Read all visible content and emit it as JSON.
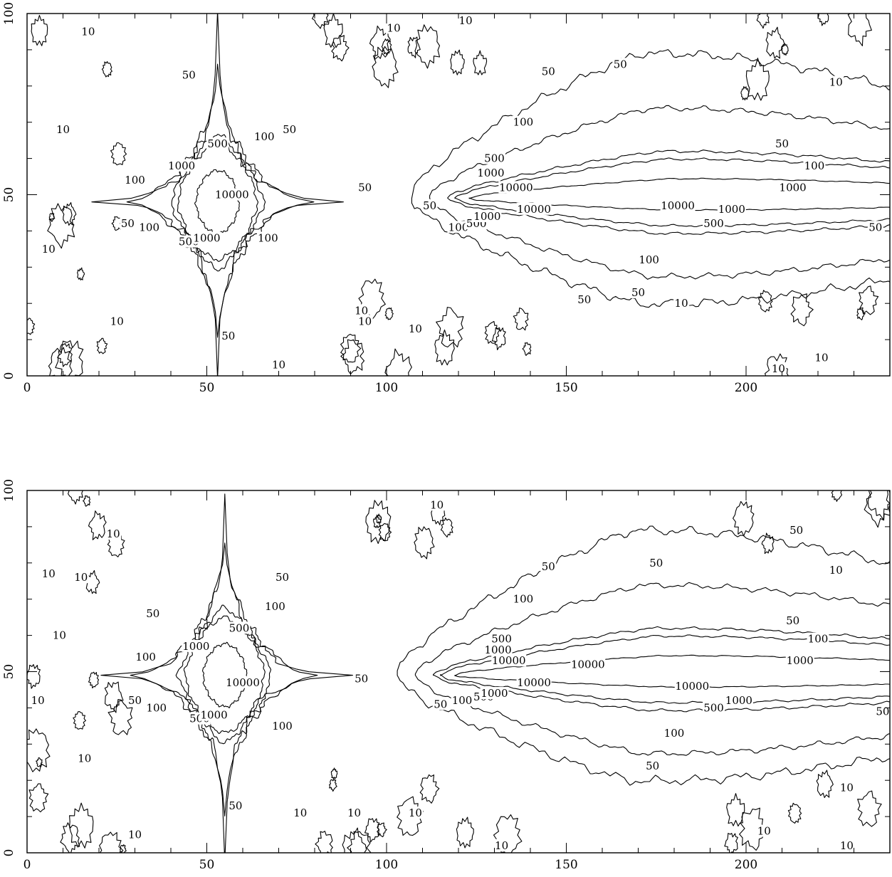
{
  "chart_data": [
    {
      "type": "contour",
      "title": "",
      "xlabel": "",
      "ylabel": "",
      "xlim": [
        0,
        240
      ],
      "ylim": [
        0,
        100
      ],
      "x_ticks": [
        0,
        50,
        100,
        150,
        200
      ],
      "y_ticks": [
        0,
        50,
        100
      ],
      "grid": false,
      "contour_levels": [
        10,
        50,
        100,
        500,
        1000,
        10000
      ],
      "sources": [
        {
          "name": "point",
          "center": [
            53,
            48
          ]
        },
        {
          "name": "tail",
          "head": [
            110,
            49
          ],
          "extends_to": 240
        }
      ],
      "contour_labels": [
        {
          "text": "10",
          "x": 17,
          "y": 95
        },
        {
          "text": "10",
          "x": 102,
          "y": 96
        },
        {
          "text": "10",
          "x": 122,
          "y": 98
        },
        {
          "text": "10",
          "x": 10,
          "y": 68
        },
        {
          "text": "10",
          "x": 6,
          "y": 35
        },
        {
          "text": "10",
          "x": 25,
          "y": 15
        },
        {
          "text": "10",
          "x": 225,
          "y": 81
        },
        {
          "text": "10",
          "x": 93,
          "y": 18
        },
        {
          "text": "10",
          "x": 94,
          "y": 15
        },
        {
          "text": "10",
          "x": 108,
          "y": 13
        },
        {
          "text": "10",
          "x": 70,
          "y": 3
        },
        {
          "text": "10",
          "x": 209,
          "y": 2
        },
        {
          "text": "10",
          "x": 221,
          "y": 5
        },
        {
          "text": "10",
          "x": 182,
          "y": 20
        },
        {
          "text": "50",
          "x": 45,
          "y": 83
        },
        {
          "text": "50",
          "x": 73,
          "y": 68
        },
        {
          "text": "50",
          "x": 28,
          "y": 42
        },
        {
          "text": "50",
          "x": 56,
          "y": 11
        },
        {
          "text": "50",
          "x": 94,
          "y": 52
        },
        {
          "text": "50",
          "x": 145,
          "y": 84
        },
        {
          "text": "50",
          "x": 165,
          "y": 86
        },
        {
          "text": "50",
          "x": 112,
          "y": 47
        },
        {
          "text": "50",
          "x": 210,
          "y": 64
        },
        {
          "text": "50",
          "x": 236,
          "y": 41
        },
        {
          "text": "50",
          "x": 155,
          "y": 21
        },
        {
          "text": "50",
          "x": 170,
          "y": 23
        },
        {
          "text": "100",
          "x": 30,
          "y": 54
        },
        {
          "text": "100",
          "x": 66,
          "y": 66
        },
        {
          "text": "100",
          "x": 34,
          "y": 41
        },
        {
          "text": "100",
          "x": 67,
          "y": 38
        },
        {
          "text": "100",
          "x": 138,
          "y": 70
        },
        {
          "text": "100",
          "x": 219,
          "y": 58
        },
        {
          "text": "100",
          "x": 120,
          "y": 41
        },
        {
          "text": "100",
          "x": 173,
          "y": 32
        },
        {
          "text": "500",
          "x": 53,
          "y": 64
        },
        {
          "text": "500",
          "x": 45,
          "y": 37
        },
        {
          "text": "500",
          "x": 130,
          "y": 60
        },
        {
          "text": "500",
          "x": 125,
          "y": 42
        },
        {
          "text": "500",
          "x": 191,
          "y": 42
        },
        {
          "text": "1000",
          "x": 43,
          "y": 58
        },
        {
          "text": "1000",
          "x": 50,
          "y": 38
        },
        {
          "text": "1000",
          "x": 129,
          "y": 56
        },
        {
          "text": "1000",
          "x": 128,
          "y": 44
        },
        {
          "text": "1000",
          "x": 196,
          "y": 46
        },
        {
          "text": "1000",
          "x": 213,
          "y": 52
        },
        {
          "text": "10000",
          "x": 57,
          "y": 50
        },
        {
          "text": "10000",
          "x": 136,
          "y": 52
        },
        {
          "text": "10000",
          "x": 141,
          "y": 46
        },
        {
          "text": "10000",
          "x": 181,
          "y": 47
        }
      ]
    },
    {
      "type": "contour",
      "title": "",
      "xlabel": "",
      "ylabel": "",
      "xlim": [
        0,
        240
      ],
      "ylim": [
        0,
        100
      ],
      "x_ticks": [
        0,
        50,
        100,
        150,
        200
      ],
      "y_ticks": [
        0,
        50,
        100
      ],
      "grid": false,
      "contour_levels": [
        10,
        50,
        100,
        500,
        1000,
        10000
      ],
      "sources": [
        {
          "name": "point",
          "center": [
            55,
            49
          ]
        },
        {
          "name": "tail",
          "head": [
            106,
            49
          ],
          "extends_to": 240
        }
      ],
      "contour_labels": [
        {
          "text": "10",
          "x": 24,
          "y": 88
        },
        {
          "text": "10",
          "x": 114,
          "y": 96
        },
        {
          "text": "10",
          "x": 6,
          "y": 77
        },
        {
          "text": "10",
          "x": 15,
          "y": 76
        },
        {
          "text": "10",
          "x": 9,
          "y": 60
        },
        {
          "text": "10",
          "x": 3,
          "y": 42
        },
        {
          "text": "10",
          "x": 16,
          "y": 26
        },
        {
          "text": "10",
          "x": 30,
          "y": 5
        },
        {
          "text": "10",
          "x": 76,
          "y": 11
        },
        {
          "text": "10",
          "x": 91,
          "y": 11
        },
        {
          "text": "10",
          "x": 108,
          "y": 11
        },
        {
          "text": "10",
          "x": 132,
          "y": 2
        },
        {
          "text": "10",
          "x": 225,
          "y": 78
        },
        {
          "text": "10",
          "x": 228,
          "y": 18
        },
        {
          "text": "10",
          "x": 205,
          "y": 6
        },
        {
          "text": "10",
          "x": 228,
          "y": 2
        },
        {
          "text": "50",
          "x": 35,
          "y": 66
        },
        {
          "text": "50",
          "x": 71,
          "y": 76
        },
        {
          "text": "50",
          "x": 30,
          "y": 42
        },
        {
          "text": "50",
          "x": 58,
          "y": 13
        },
        {
          "text": "50",
          "x": 93,
          "y": 48
        },
        {
          "text": "50",
          "x": 145,
          "y": 79
        },
        {
          "text": "50",
          "x": 175,
          "y": 80
        },
        {
          "text": "50",
          "x": 214,
          "y": 89
        },
        {
          "text": "50",
          "x": 115,
          "y": 41
        },
        {
          "text": "50",
          "x": 213,
          "y": 64
        },
        {
          "text": "50",
          "x": 238,
          "y": 39
        },
        {
          "text": "50",
          "x": 174,
          "y": 24
        },
        {
          "text": "100",
          "x": 69,
          "y": 68
        },
        {
          "text": "100",
          "x": 33,
          "y": 54
        },
        {
          "text": "100",
          "x": 36,
          "y": 40
        },
        {
          "text": "100",
          "x": 71,
          "y": 35
        },
        {
          "text": "100",
          "x": 138,
          "y": 70
        },
        {
          "text": "100",
          "x": 220,
          "y": 59
        },
        {
          "text": "100",
          "x": 121,
          "y": 42
        },
        {
          "text": "100",
          "x": 180,
          "y": 33
        },
        {
          "text": "500",
          "x": 59,
          "y": 62
        },
        {
          "text": "500",
          "x": 48,
          "y": 37
        },
        {
          "text": "500",
          "x": 132,
          "y": 59
        },
        {
          "text": "500",
          "x": 127,
          "y": 43
        },
        {
          "text": "500",
          "x": 191,
          "y": 40
        },
        {
          "text": "1000",
          "x": 47,
          "y": 57
        },
        {
          "text": "1000",
          "x": 52,
          "y": 38
        },
        {
          "text": "1000",
          "x": 131,
          "y": 56
        },
        {
          "text": "1000",
          "x": 130,
          "y": 44
        },
        {
          "text": "1000",
          "x": 198,
          "y": 42
        },
        {
          "text": "1000",
          "x": 215,
          "y": 53
        },
        {
          "text": "10000",
          "x": 60,
          "y": 47
        },
        {
          "text": "10000",
          "x": 134,
          "y": 53
        },
        {
          "text": "10000",
          "x": 156,
          "y": 52
        },
        {
          "text": "10000",
          "x": 141,
          "y": 47
        },
        {
          "text": "10000",
          "x": 185,
          "y": 46
        }
      ]
    }
  ]
}
